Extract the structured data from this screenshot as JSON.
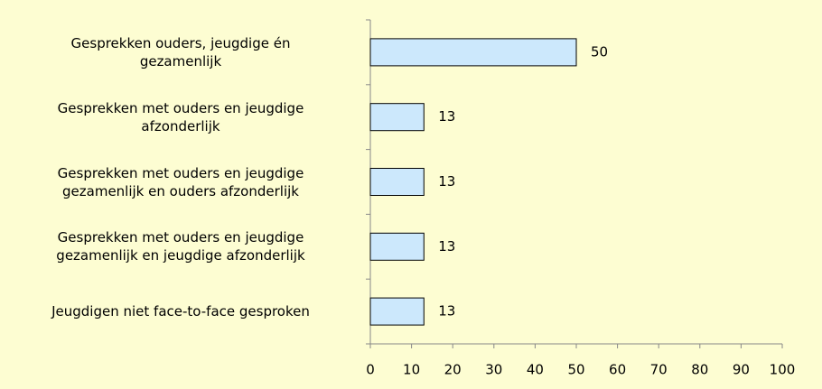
{
  "chart_data": {
    "type": "bar",
    "orientation": "horizontal",
    "categories": [
      "Gesprekken ouders, jeugdige én\ngezamenlijk",
      "Gesprekken met ouders en jeugdige\nafzonderlijk",
      "Gesprekken met ouders en jeugdige\ngezamenlijk en ouders afzonderlijk",
      "Gesprekken met ouders en jeugdige\ngezamenlijk en jeugdige afzonderlijk",
      "Jeugdigen niet face-to-face gesproken"
    ],
    "values": [
      50,
      13,
      13,
      13,
      13
    ],
    "color": "#cce8fc",
    "xlim": [
      0,
      100
    ],
    "xticks": [
      0,
      10,
      20,
      30,
      40,
      50,
      60,
      70,
      80,
      90,
      100
    ]
  }
}
